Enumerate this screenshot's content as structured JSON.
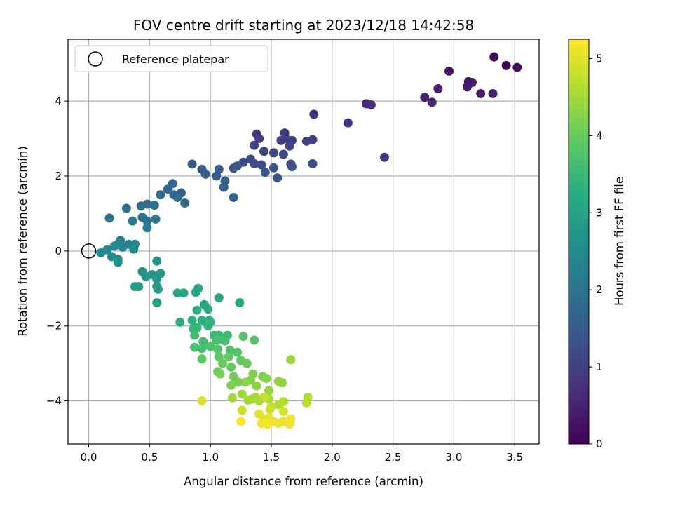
{
  "chart_data": {
    "type": "scatter",
    "title": "FOV centre drift starting at 2023/12/18 14:42:58",
    "xlabel": "Angular distance from reference (arcmin)",
    "ylabel": "Rotation from reference (arcmin)",
    "xlim": [
      -0.17,
      3.7
    ],
    "ylim": [
      -5.15,
      5.65
    ],
    "x_ticks": [
      0.0,
      0.5,
      1.0,
      1.5,
      2.0,
      2.5,
      3.0,
      3.5
    ],
    "x_tick_labels": [
      "0.0",
      "0.5",
      "1.0",
      "1.5",
      "2.0",
      "2.5",
      "3.0",
      "3.5"
    ],
    "y_ticks": [
      -4,
      -2,
      0,
      2,
      4
    ],
    "y_tick_labels": [
      "−4",
      "−2",
      "0",
      "2",
      "4"
    ],
    "grid": true,
    "legend": {
      "placement": "top-left",
      "entries": [
        "Reference platepar"
      ]
    },
    "reference_point": {
      "x": 0.0,
      "y": 0.0
    },
    "colorbar": {
      "label": "Hours from first FF file",
      "min": 0,
      "max": 5.25,
      "ticks": [
        0,
        1,
        2,
        3,
        4,
        5
      ],
      "tick_labels": [
        "0",
        "1",
        "2",
        "3",
        "4",
        "5"
      ],
      "colormap": "viridis"
    },
    "points": [
      [
        3.33,
        5.18,
        0.05
      ],
      [
        3.43,
        4.95,
        0.1
      ],
      [
        3.52,
        4.9,
        0.15
      ],
      [
        2.96,
        4.8,
        0.25
      ],
      [
        3.12,
        4.52,
        0.3
      ],
      [
        3.15,
        4.5,
        0.35
      ],
      [
        3.11,
        4.38,
        0.35
      ],
      [
        2.87,
        4.33,
        0.4
      ],
      [
        3.22,
        4.2,
        0.45
      ],
      [
        3.32,
        4.2,
        0.45
      ],
      [
        2.76,
        4.1,
        0.5
      ],
      [
        2.82,
        3.97,
        0.55
      ],
      [
        2.28,
        3.93,
        0.6
      ],
      [
        2.32,
        3.9,
        0.65
      ],
      [
        1.85,
        3.65,
        0.7
      ],
      [
        2.13,
        3.42,
        0.75
      ],
      [
        2.43,
        2.5,
        0.8
      ],
      [
        1.61,
        3.15,
        0.85
      ],
      [
        1.38,
        3.12,
        0.85
      ],
      [
        1.4,
        3.0,
        0.9
      ],
      [
        1.58,
        2.95,
        0.9
      ],
      [
        1.62,
        3.0,
        0.95
      ],
      [
        1.67,
        2.95,
        0.95
      ],
      [
        1.79,
        2.93,
        1.0
      ],
      [
        1.84,
        2.97,
        1.0
      ],
      [
        1.36,
        2.82,
        1.05
      ],
      [
        1.65,
        2.8,
        1.05
      ],
      [
        1.44,
        2.66,
        1.1
      ],
      [
        1.52,
        2.62,
        1.1
      ],
      [
        1.6,
        2.58,
        1.15
      ],
      [
        1.33,
        2.45,
        1.15
      ],
      [
        1.27,
        2.37,
        1.2
      ],
      [
        1.36,
        2.33,
        1.2
      ],
      [
        1.42,
        2.3,
        1.25
      ],
      [
        1.66,
        2.32,
        1.25
      ],
      [
        1.84,
        2.33,
        1.3
      ],
      [
        1.67,
        2.25,
        1.3
      ],
      [
        1.52,
        2.22,
        1.35
      ],
      [
        1.22,
        2.27,
        1.35
      ],
      [
        1.19,
        2.21,
        1.4
      ],
      [
        1.45,
        2.1,
        1.4
      ],
      [
        1.55,
        1.95,
        1.45
      ],
      [
        0.85,
        2.32,
        1.45
      ],
      [
        0.93,
        2.18,
        1.5
      ],
      [
        1.07,
        2.18,
        1.5
      ],
      [
        0.96,
        2.05,
        1.55
      ],
      [
        1.05,
        2.0,
        1.55
      ],
      [
        1.12,
        1.87,
        1.6
      ],
      [
        1.11,
        1.7,
        1.6
      ],
      [
        1.19,
        1.43,
        1.65
      ],
      [
        0.65,
        1.65,
        1.7
      ],
      [
        0.69,
        1.8,
        1.7
      ],
      [
        0.7,
        1.5,
        1.75
      ],
      [
        0.76,
        1.55,
        1.75
      ],
      [
        0.73,
        1.43,
        1.8
      ],
      [
        0.59,
        1.5,
        1.8
      ],
      [
        0.79,
        1.28,
        1.85
      ],
      [
        0.43,
        1.2,
        1.9
      ],
      [
        0.48,
        1.25,
        1.9
      ],
      [
        0.54,
        1.22,
        1.95
      ],
      [
        0.31,
        1.14,
        1.95
      ],
      [
        0.17,
        0.88,
        2.0
      ],
      [
        0.44,
        0.9,
        2.05
      ],
      [
        0.48,
        0.8,
        2.05
      ],
      [
        0.36,
        0.8,
        2.1
      ],
      [
        0.55,
        0.85,
        2.1
      ],
      [
        0.48,
        0.62,
        2.15
      ],
      [
        0.26,
        0.28,
        2.25
      ],
      [
        0.33,
        0.18,
        2.3
      ],
      [
        0.28,
        0.1,
        2.3
      ],
      [
        0.38,
        0.18,
        2.35
      ],
      [
        0.21,
        0.13,
        2.4
      ],
      [
        0.24,
        0.18,
        2.4
      ],
      [
        0.15,
        0.03,
        2.45
      ],
      [
        0.1,
        -0.05,
        2.5
      ],
      [
        0.19,
        -0.15,
        2.55
      ],
      [
        0.24,
        -0.22,
        2.55
      ],
      [
        0.24,
        -0.3,
        2.6
      ],
      [
        0.37,
        0.05,
        2.6
      ],
      [
        0.56,
        -0.27,
        2.65
      ],
      [
        0.44,
        -0.55,
        2.7
      ],
      [
        0.47,
        -0.68,
        2.75
      ],
      [
        0.52,
        -0.63,
        2.75
      ],
      [
        0.59,
        -0.6,
        2.8
      ],
      [
        0.56,
        -0.75,
        2.85
      ],
      [
        0.56,
        -0.95,
        2.85
      ],
      [
        0.57,
        -1.02,
        2.9
      ],
      [
        0.38,
        -0.95,
        2.9
      ],
      [
        0.41,
        -0.95,
        2.95
      ],
      [
        0.56,
        -1.38,
        3.0
      ],
      [
        0.73,
        -1.12,
        3.05
      ],
      [
        0.78,
        -1.12,
        3.05
      ],
      [
        0.88,
        -1.1,
        3.1
      ],
      [
        0.9,
        -1.0,
        3.1
      ],
      [
        1.07,
        -1.25,
        3.15
      ],
      [
        1.24,
        -1.38,
        3.2
      ],
      [
        0.95,
        -1.43,
        3.2
      ],
      [
        0.98,
        -1.55,
        3.25
      ],
      [
        0.89,
        -1.58,
        3.25
      ],
      [
        0.75,
        -1.9,
        3.3
      ],
      [
        0.85,
        -1.85,
        3.3
      ],
      [
        0.93,
        -1.85,
        3.35
      ],
      [
        0.99,
        -1.85,
        3.35
      ],
      [
        1.0,
        -1.9,
        3.4
      ],
      [
        0.98,
        -2.0,
        3.4
      ],
      [
        0.86,
        -2.08,
        3.45
      ],
      [
        0.89,
        -2.05,
        3.45
      ],
      [
        1.03,
        -2.25,
        3.5
      ],
      [
        1.07,
        -2.25,
        3.5
      ],
      [
        1.09,
        -2.35,
        3.55
      ],
      [
        1.14,
        -2.25,
        3.55
      ],
      [
        0.87,
        -2.25,
        3.6
      ],
      [
        0.94,
        -2.42,
        3.6
      ],
      [
        1.05,
        -2.38,
        3.65
      ],
      [
        1.12,
        -2.4,
        3.65
      ],
      [
        0.87,
        -2.57,
        3.7
      ],
      [
        0.93,
        -2.6,
        3.7
      ],
      [
        1.0,
        -2.55,
        3.75
      ],
      [
        1.06,
        -2.62,
        3.75
      ],
      [
        1.16,
        -2.65,
        3.8
      ],
      [
        1.22,
        -2.7,
        3.8
      ],
      [
        1.27,
        -2.28,
        3.85
      ],
      [
        1.36,
        -2.38,
        3.85
      ],
      [
        0.93,
        -2.88,
        3.9
      ],
      [
        1.07,
        -2.82,
        3.9
      ],
      [
        1.15,
        -2.82,
        3.95
      ],
      [
        1.25,
        -2.92,
        3.95
      ],
      [
        1.1,
        -3.0,
        4.0
      ],
      [
        1.17,
        -3.1,
        4.0
      ],
      [
        1.3,
        -3.0,
        4.05
      ],
      [
        1.06,
        -3.22,
        4.05
      ],
      [
        1.08,
        -3.28,
        4.1
      ],
      [
        1.19,
        -3.35,
        4.1
      ],
      [
        1.23,
        -3.5,
        4.15
      ],
      [
        1.17,
        -3.58,
        4.15
      ],
      [
        1.35,
        -3.28,
        4.2
      ],
      [
        1.43,
        -3.35,
        4.2
      ],
      [
        1.33,
        -3.45,
        4.25
      ],
      [
        1.46,
        -3.4,
        4.25
      ],
      [
        1.38,
        -3.6,
        4.3
      ],
      [
        1.29,
        -3.5,
        4.3
      ],
      [
        1.56,
        -3.48,
        4.35
      ],
      [
        1.59,
        -3.52,
        4.35
      ],
      [
        1.66,
        -2.9,
        4.4
      ],
      [
        1.48,
        -3.72,
        4.4
      ],
      [
        1.26,
        -3.82,
        4.45
      ],
      [
        1.34,
        -3.95,
        4.45
      ],
      [
        1.31,
        -3.98,
        4.5
      ],
      [
        1.18,
        -3.92,
        4.5
      ],
      [
        1.37,
        -3.9,
        4.55
      ],
      [
        1.4,
        -4.0,
        4.55
      ],
      [
        1.48,
        -3.95,
        4.6
      ],
      [
        1.56,
        -4.1,
        4.6
      ],
      [
        1.6,
        -4.02,
        4.65
      ],
      [
        1.8,
        -3.9,
        4.65
      ],
      [
        1.79,
        -4.05,
        4.7
      ],
      [
        1.5,
        -4.15,
        4.75
      ],
      [
        1.44,
        -3.9,
        4.8
      ],
      [
        1.26,
        -4.25,
        4.85
      ],
      [
        1.49,
        -4.22,
        4.85
      ],
      [
        1.6,
        -4.28,
        4.9
      ],
      [
        0.93,
        -4.0,
        4.95
      ],
      [
        1.4,
        -4.35,
        5.0
      ],
      [
        1.45,
        -4.5,
        5.0
      ],
      [
        1.48,
        -4.45,
        5.05
      ],
      [
        1.52,
        -4.55,
        5.05
      ],
      [
        1.56,
        -4.6,
        5.1
      ],
      [
        1.6,
        -4.55,
        5.1
      ],
      [
        1.66,
        -4.48,
        5.15
      ],
      [
        1.65,
        -4.62,
        5.15
      ],
      [
        1.42,
        -4.6,
        5.2
      ],
      [
        1.47,
        -4.62,
        5.2
      ],
      [
        1.25,
        -4.55,
        5.25
      ]
    ]
  }
}
